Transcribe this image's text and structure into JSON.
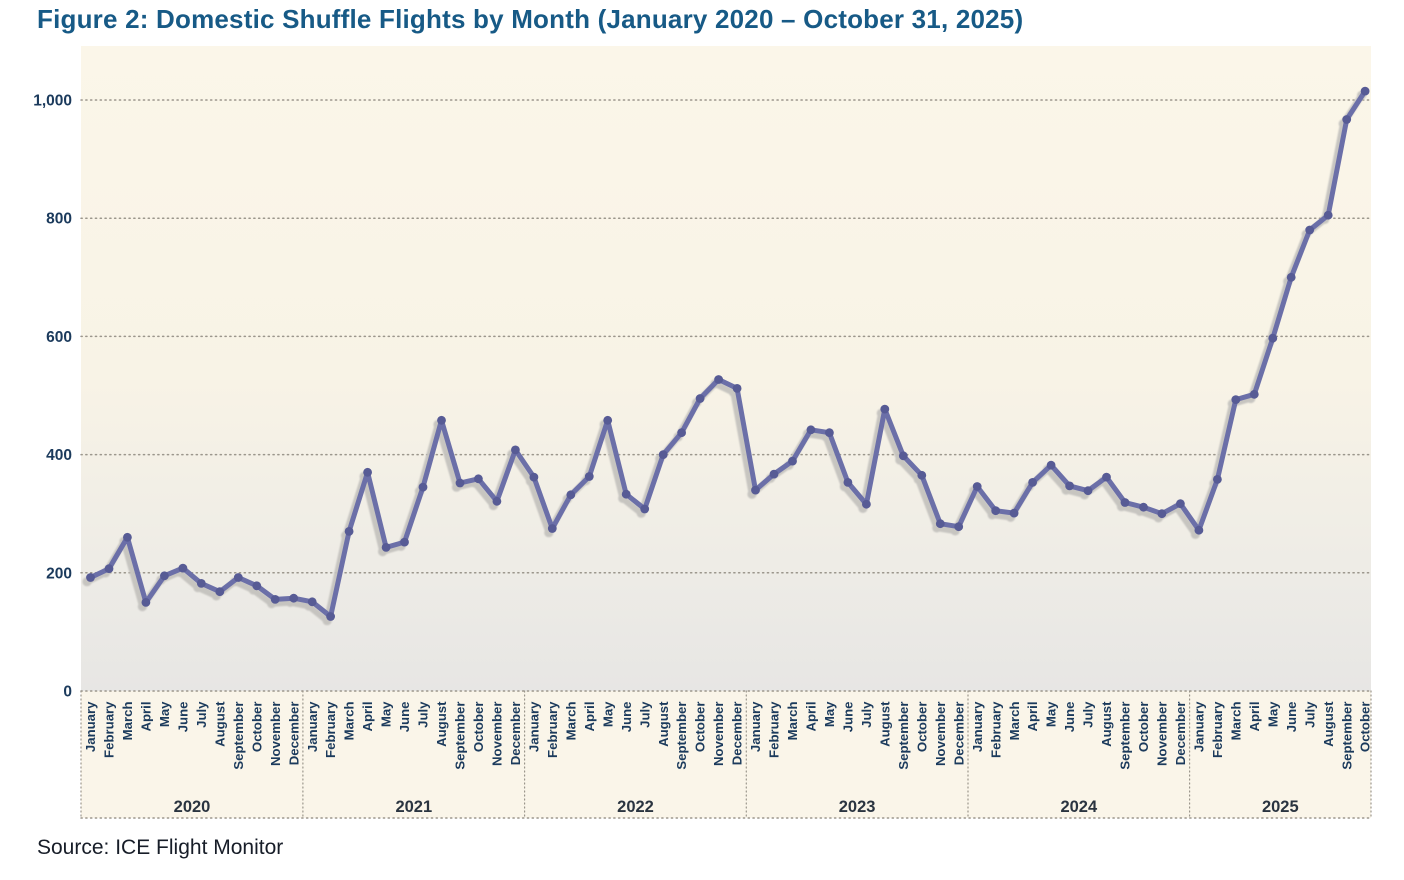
{
  "title": "Figure 2: Domestic Shuffle Flights by Month (January 2020 – October 31, 2025)",
  "source": "Source: ICE Flight Monitor",
  "colors": {
    "title_text": "#175a86",
    "axis_text": "#1b3a5c",
    "year_text": "#2a3440",
    "line": "#6b6fa8",
    "marker": "#575b95",
    "shadow": "#c5c3bf",
    "gridline": "#9b968c",
    "plot_bg_top": "#fbf6e9",
    "plot_bg_mid": "#f8f3e6",
    "plot_bg_bottom": "#e7e6e4",
    "label_band_bg": "#faf5e9",
    "page_bg": "#ffffff"
  },
  "chart_data": {
    "type": "line",
    "title": "Figure 2: Domestic Shuffle Flights by Month (January 2020 – October 31, 2025)",
    "xlabel": "",
    "ylabel": "",
    "ylim": [
      0,
      1000
    ],
    "ytick_labels": [
      "0",
      "200",
      "400",
      "600",
      "800",
      "1,000"
    ],
    "ytick_values": [
      0,
      200,
      400,
      600,
      800,
      1000
    ],
    "grid": "horizontal-dotted",
    "legend": "none",
    "series_name": "Domestic Shuffle Flights",
    "groups": [
      {
        "year": "2020",
        "months": [
          "January",
          "February",
          "March",
          "April",
          "May",
          "June",
          "July",
          "August",
          "September",
          "October",
          "November",
          "December"
        ],
        "values": [
          192,
          207,
          260,
          150,
          195,
          208,
          182,
          168,
          192,
          178,
          155,
          157
        ]
      },
      {
        "year": "2021",
        "months": [
          "January",
          "February",
          "March",
          "April",
          "May",
          "June",
          "July",
          "August",
          "September",
          "October",
          "November",
          "December"
        ],
        "values": [
          151,
          126,
          270,
          370,
          243,
          252,
          345,
          458,
          352,
          359,
          321,
          408
        ]
      },
      {
        "year": "2022",
        "months": [
          "January",
          "February",
          "March",
          "April",
          "May",
          "June",
          "July",
          "August",
          "September",
          "October",
          "November",
          "December"
        ],
        "values": [
          362,
          275,
          332,
          363,
          458,
          333,
          308,
          400,
          437,
          495,
          527,
          512
        ]
      },
      {
        "year": "2023",
        "months": [
          "January",
          "February",
          "March",
          "April",
          "May",
          "June",
          "July",
          "August",
          "September",
          "October",
          "November",
          "December"
        ],
        "values": [
          340,
          367,
          389,
          442,
          437,
          353,
          316,
          477,
          398,
          365,
          283,
          278
        ]
      },
      {
        "year": "2024",
        "months": [
          "January",
          "February",
          "March",
          "April",
          "May",
          "June",
          "July",
          "August",
          "September",
          "October",
          "November",
          "December"
        ],
        "values": [
          346,
          305,
          301,
          353,
          382,
          347,
          339,
          362,
          319,
          311,
          300,
          317
        ]
      },
      {
        "year": "2025",
        "months": [
          "January",
          "February",
          "March",
          "April",
          "May",
          "June",
          "July",
          "August",
          "September",
          "October"
        ],
        "values": [
          272,
          358,
          493,
          502,
          597,
          700,
          780,
          805,
          967,
          1015
        ]
      }
    ]
  }
}
